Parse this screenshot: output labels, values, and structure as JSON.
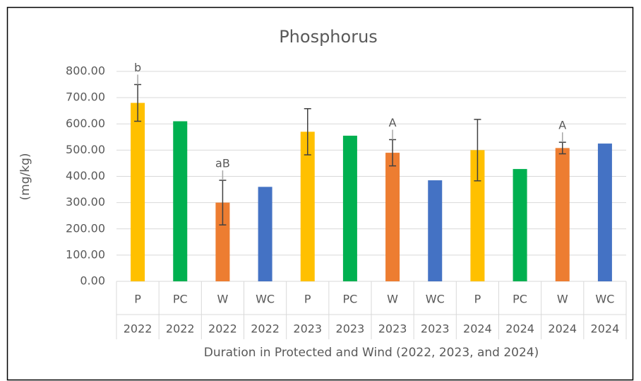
{
  "chart_data": {
    "type": "bar",
    "title": "Phosphorus",
    "y_label": "(mg/kg)",
    "x_label": "Duration in Protected and Wind (2022, 2023, and 2024)",
    "categories": [
      "P",
      "PC",
      "W",
      "WC",
      "P",
      "PC",
      "W",
      "WC",
      "P",
      "PC",
      "W",
      "WC"
    ],
    "groups": [
      "2022",
      "2022",
      "2022",
      "2022",
      "2023",
      "2023",
      "2023",
      "2023",
      "2024",
      "2024",
      "2024",
      "2024"
    ],
    "values": [
      680,
      610,
      300,
      360,
      570,
      555,
      490,
      385,
      500,
      428,
      508,
      525
    ],
    "errors": [
      70,
      null,
      85,
      null,
      88,
      null,
      50,
      null,
      117,
      null,
      22,
      null
    ],
    "annotations": [
      "b",
      null,
      "aB",
      null,
      null,
      null,
      "A",
      null,
      null,
      null,
      "A",
      null
    ],
    "colors": [
      "#ffc000",
      "#00b050",
      "#ed7d31",
      "#4472c4",
      "#ffc000",
      "#00b050",
      "#ed7d31",
      "#4472c4",
      "#ffc000",
      "#00b050",
      "#ed7d31",
      "#4472c4"
    ],
    "ylim": [
      0,
      800
    ],
    "yticks": [
      {
        "value": 0,
        "label": "0.00"
      },
      {
        "value": 100,
        "label": "100.00"
      },
      {
        "value": 200,
        "label": "200.00"
      },
      {
        "value": 300,
        "label": "300.00"
      },
      {
        "value": 400,
        "label": "400.00"
      },
      {
        "value": 500,
        "label": "500.00"
      },
      {
        "value": 600,
        "label": "600.00"
      },
      {
        "value": 700,
        "label": "700.00"
      },
      {
        "value": 800,
        "label": "800.00"
      }
    ],
    "grid": true
  }
}
